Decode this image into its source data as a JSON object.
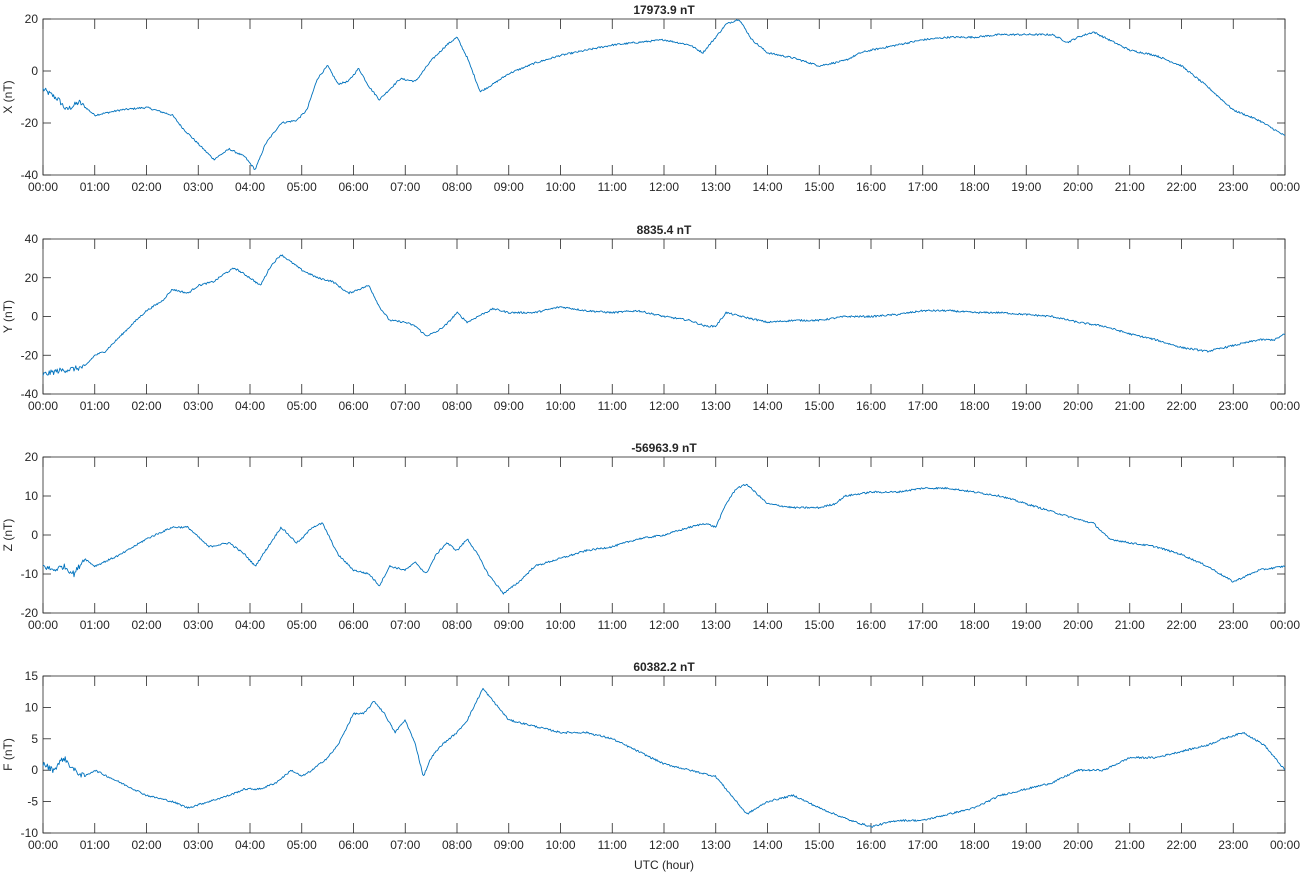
{
  "chart_data": [
    {
      "type": "line",
      "title": "17973.9 nT",
      "ylabel": "X (nT)",
      "xlabel": "",
      "xlim": [
        0,
        24
      ],
      "ylim": [
        -40,
        20
      ],
      "yticks": [
        "-40",
        "-20",
        "0",
        "20"
      ],
      "xticks": [
        "00:00",
        "01:00",
        "02:00",
        "03:00",
        "04:00",
        "05:00",
        "06:00",
        "07:00",
        "08:00",
        "09:00",
        "10:00",
        "11:00",
        "12:00",
        "13:00",
        "14:00",
        "15:00",
        "16:00",
        "17:00",
        "18:00",
        "19:00",
        "20:00",
        "21:00",
        "22:00",
        "23:00",
        "00:00"
      ],
      "grid": false,
      "series": [
        {
          "color": "#0072BD",
          "x": [
            0,
            0.3,
            0.45,
            0.7,
            1.0,
            1.5,
            2.0,
            2.5,
            2.7,
            3.0,
            3.3,
            3.6,
            3.9,
            4.1,
            4.3,
            4.6,
            4.9,
            5.1,
            5.3,
            5.5,
            5.7,
            5.9,
            6.1,
            6.3,
            6.5,
            6.7,
            6.9,
            7.2,
            7.5,
            7.8,
            8.0,
            8.2,
            8.45,
            8.7,
            9.0,
            9.5,
            10.0,
            10.5,
            11.0,
            11.5,
            12.0,
            12.5,
            12.75,
            13.0,
            13.2,
            13.45,
            13.7,
            14.0,
            14.5,
            15.0,
            15.5,
            15.8,
            16.0,
            16.5,
            17.0,
            17.5,
            18.0,
            18.5,
            19.0,
            19.5,
            19.8,
            20.0,
            20.3,
            20.6,
            21.0,
            21.5,
            22.0,
            22.5,
            23.0,
            23.5,
            24.0
          ],
          "values": [
            -7,
            -11,
            -15,
            -12,
            -17,
            -15,
            -14,
            -17,
            -22,
            -28,
            -34,
            -30,
            -33,
            -38,
            -28,
            -20,
            -19,
            -15,
            -3,
            2,
            -5,
            -4,
            1,
            -6,
            -11,
            -7,
            -3,
            -4,
            4,
            10,
            13,
            5,
            -8,
            -5,
            -1,
            3,
            6,
            8,
            10,
            11,
            12,
            10,
            7,
            13,
            18,
            20,
            12,
            7,
            5,
            2,
            4,
            7,
            8,
            10,
            12,
            13,
            13,
            14,
            14,
            14,
            11,
            13,
            15,
            12,
            8,
            6,
            2,
            -6,
            -15,
            -19,
            -25
          ]
        }
      ]
    },
    {
      "type": "line",
      "title": "8835.4 nT",
      "ylabel": "Y (nT)",
      "xlabel": "",
      "xlim": [
        0,
        24
      ],
      "ylim": [
        -40,
        40
      ],
      "yticks": [
        "-40",
        "-20",
        "0",
        "20",
        "40"
      ],
      "xticks": [
        "00:00",
        "01:00",
        "02:00",
        "03:00",
        "04:00",
        "05:00",
        "06:00",
        "07:00",
        "08:00",
        "09:00",
        "10:00",
        "11:00",
        "12:00",
        "13:00",
        "14:00",
        "15:00",
        "16:00",
        "17:00",
        "18:00",
        "19:00",
        "20:00",
        "21:00",
        "22:00",
        "23:00",
        "00:00"
      ],
      "grid": false,
      "series": [
        {
          "color": "#0072BD",
          "x": [
            0,
            0.3,
            0.6,
            0.8,
            1.0,
            1.2,
            1.5,
            1.8,
            2.0,
            2.3,
            2.5,
            2.8,
            3.0,
            3.3,
            3.5,
            3.7,
            4.0,
            4.2,
            4.4,
            4.6,
            4.8,
            5.0,
            5.3,
            5.6,
            5.9,
            6.1,
            6.3,
            6.5,
            6.7,
            7.0,
            7.2,
            7.4,
            7.6,
            7.8,
            8.0,
            8.2,
            8.4,
            8.7,
            9.0,
            9.5,
            10.0,
            10.5,
            11.0,
            11.5,
            12.0,
            12.5,
            12.8,
            13.0,
            13.2,
            13.5,
            14.0,
            14.5,
            15.0,
            15.5,
            16.0,
            16.5,
            17.0,
            17.5,
            18.0,
            18.5,
            19.0,
            19.5,
            20.0,
            20.5,
            21.0,
            21.5,
            22.0,
            22.5,
            23.0,
            23.5,
            23.8,
            24.0
          ],
          "values": [
            -30,
            -28,
            -27,
            -26,
            -20,
            -18,
            -10,
            -2,
            3,
            8,
            14,
            12,
            16,
            18,
            22,
            25,
            20,
            16,
            26,
            32,
            28,
            24,
            20,
            18,
            12,
            14,
            16,
            5,
            -2,
            -3,
            -5,
            -10,
            -8,
            -4,
            2,
            -3,
            0,
            4,
            2,
            2,
            5,
            3,
            2,
            3,
            0,
            -2,
            -5,
            -5,
            2,
            0,
            -3,
            -2,
            -2,
            0,
            0,
            1,
            3,
            3,
            2,
            2,
            1,
            0,
            -3,
            -5,
            -9,
            -12,
            -16,
            -18,
            -15,
            -12,
            -12,
            -9
          ]
        }
      ]
    },
    {
      "type": "line",
      "title": "-56963.9 nT",
      "ylabel": "Z (nT)",
      "xlabel": "",
      "xlim": [
        0,
        24
      ],
      "ylim": [
        -20,
        20
      ],
      "yticks": [
        "-20",
        "-10",
        "0",
        "10",
        "20"
      ],
      "xticks": [
        "00:00",
        "01:00",
        "02:00",
        "03:00",
        "04:00",
        "05:00",
        "06:00",
        "07:00",
        "08:00",
        "09:00",
        "10:00",
        "11:00",
        "12:00",
        "13:00",
        "14:00",
        "15:00",
        "16:00",
        "17:00",
        "18:00",
        "19:00",
        "20:00",
        "21:00",
        "22:00",
        "23:00",
        "00:00"
      ],
      "grid": false,
      "series": [
        {
          "color": "#0072BD",
          "x": [
            0,
            0.2,
            0.4,
            0.6,
            0.8,
            1.0,
            1.5,
            2.0,
            2.5,
            2.8,
            3.2,
            3.6,
            3.9,
            4.1,
            4.3,
            4.6,
            4.9,
            5.0,
            5.2,
            5.4,
            5.7,
            6.0,
            6.3,
            6.5,
            6.7,
            7.0,
            7.2,
            7.4,
            7.6,
            7.8,
            8.0,
            8.2,
            8.4,
            8.6,
            8.9,
            9.2,
            9.5,
            10.0,
            10.5,
            11.0,
            11.5,
            12.0,
            12.5,
            12.8,
            13.0,
            13.2,
            13.4,
            13.6,
            14.0,
            14.5,
            15.0,
            15.3,
            15.5,
            16.0,
            16.5,
            17.0,
            17.5,
            18.0,
            18.5,
            19.0,
            19.5,
            20.0,
            20.3,
            20.6,
            21.0,
            21.5,
            22.0,
            22.5,
            23.0,
            23.5,
            24.0
          ],
          "values": [
            -8,
            -9,
            -8,
            -10,
            -6,
            -8,
            -5,
            -1,
            2,
            2,
            -3,
            -2,
            -5,
            -8,
            -4,
            2,
            -2,
            -1,
            2,
            3,
            -5,
            -9,
            -10,
            -13,
            -8,
            -9,
            -7,
            -10,
            -5,
            -2,
            -4,
            -1,
            -5,
            -10,
            -15,
            -12,
            -8,
            -6,
            -4,
            -3,
            -1,
            0,
            2,
            3,
            2,
            8,
            12,
            13,
            8,
            7,
            7,
            8,
            10,
            11,
            11,
            12,
            12,
            11,
            10,
            8,
            6,
            4,
            3,
            -1,
            -2,
            -3,
            -5,
            -8,
            -12,
            -9,
            -8
          ]
        }
      ]
    },
    {
      "type": "line",
      "title": "60382.2 nT",
      "ylabel": "F (nT)",
      "xlabel": "UTC (hour)",
      "xlim": [
        0,
        24
      ],
      "ylim": [
        -10,
        15
      ],
      "yticks": [
        "-10",
        "-5",
        "0",
        "5",
        "10",
        "15"
      ],
      "xticks": [
        "00:00",
        "01:00",
        "02:00",
        "03:00",
        "04:00",
        "05:00",
        "06:00",
        "07:00",
        "08:00",
        "09:00",
        "10:00",
        "11:00",
        "12:00",
        "13:00",
        "14:00",
        "15:00",
        "16:00",
        "17:00",
        "18:00",
        "19:00",
        "20:00",
        "21:00",
        "22:00",
        "23:00",
        "00:00"
      ],
      "grid": false,
      "series": [
        {
          "color": "#0072BD",
          "x": [
            0,
            0.2,
            0.4,
            0.6,
            0.8,
            1.0,
            1.5,
            2.0,
            2.5,
            2.8,
            3.2,
            3.6,
            3.9,
            4.2,
            4.5,
            4.8,
            5.0,
            5.2,
            5.5,
            5.7,
            6.0,
            6.2,
            6.4,
            6.6,
            6.8,
            7.0,
            7.2,
            7.35,
            7.5,
            7.7,
            8.0,
            8.2,
            8.5,
            8.8,
            9.0,
            9.5,
            10.0,
            10.5,
            11.0,
            11.5,
            12.0,
            12.5,
            13.0,
            13.3,
            13.6,
            14.0,
            14.5,
            15.0,
            15.3,
            15.6,
            16.0,
            16.5,
            17.0,
            17.5,
            18.0,
            18.5,
            19.0,
            19.5,
            20.0,
            20.5,
            21.0,
            21.5,
            22.0,
            22.5,
            22.8,
            23.2,
            23.6,
            24.0
          ],
          "values": [
            1,
            0,
            2,
            0,
            -1,
            0,
            -2,
            -4,
            -5,
            -6,
            -5,
            -4,
            -3,
            -3,
            -2,
            0,
            -1,
            0,
            2,
            4,
            9,
            9,
            11,
            9,
            6,
            8,
            4,
            -1,
            2,
            4,
            6,
            8,
            13,
            10,
            8,
            7,
            6,
            6,
            5,
            3,
            1,
            0,
            -1,
            -4,
            -7,
            -5,
            -4,
            -6,
            -7,
            -8,
            -9,
            -8,
            -8,
            -7,
            -6,
            -4,
            -3,
            -2,
            0,
            0,
            2,
            2,
            3,
            4,
            5,
            6,
            4,
            0
          ]
        }
      ]
    }
  ]
}
